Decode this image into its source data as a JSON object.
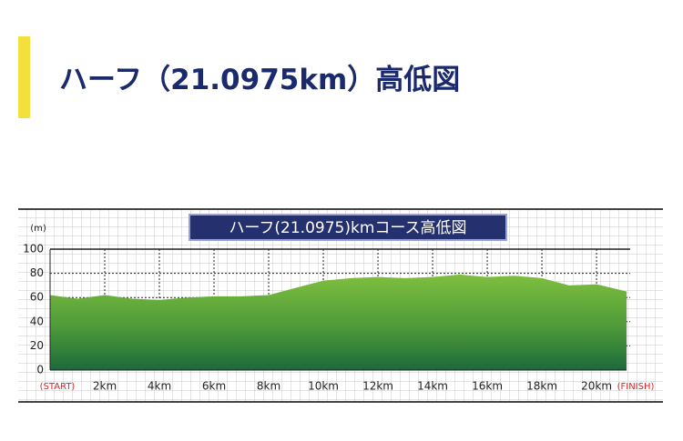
{
  "page_title": "ハーフ（21.0975km）高低図",
  "chart_data": {
    "type": "area",
    "title": "ハーフ(21.0975)kmコース高低図",
    "y_label": "(m)",
    "x": [
      0,
      1,
      2,
      3,
      4,
      5,
      6,
      7,
      8,
      9,
      10,
      11,
      12,
      13,
      14,
      15,
      16,
      17,
      18,
      19,
      20,
      21.0975
    ],
    "values": [
      62,
      59,
      62,
      59,
      58,
      60,
      61,
      61,
      62,
      68,
      74,
      76,
      77,
      76,
      77,
      79,
      77,
      78,
      76,
      70,
      71,
      65
    ],
    "xlim": [
      0,
      21.0975
    ],
    "xticks": [
      {
        "value": 0,
        "label": "(START)"
      },
      {
        "value": 2,
        "label": "2km"
      },
      {
        "value": 4,
        "label": "4km"
      },
      {
        "value": 6,
        "label": "6km"
      },
      {
        "value": 8,
        "label": "8km"
      },
      {
        "value": 10,
        "label": "10km"
      },
      {
        "value": 12,
        "label": "12km"
      },
      {
        "value": 14,
        "label": "14km"
      },
      {
        "value": 16,
        "label": "16km"
      },
      {
        "value": 18,
        "label": "18km"
      },
      {
        "value": 20,
        "label": "20km"
      },
      {
        "value": 21.0975,
        "label": "(FINISH)"
      }
    ],
    "ylim": [
      0,
      100
    ],
    "yticks": [
      0,
      20,
      40,
      60,
      80,
      100
    ],
    "grid": true
  }
}
